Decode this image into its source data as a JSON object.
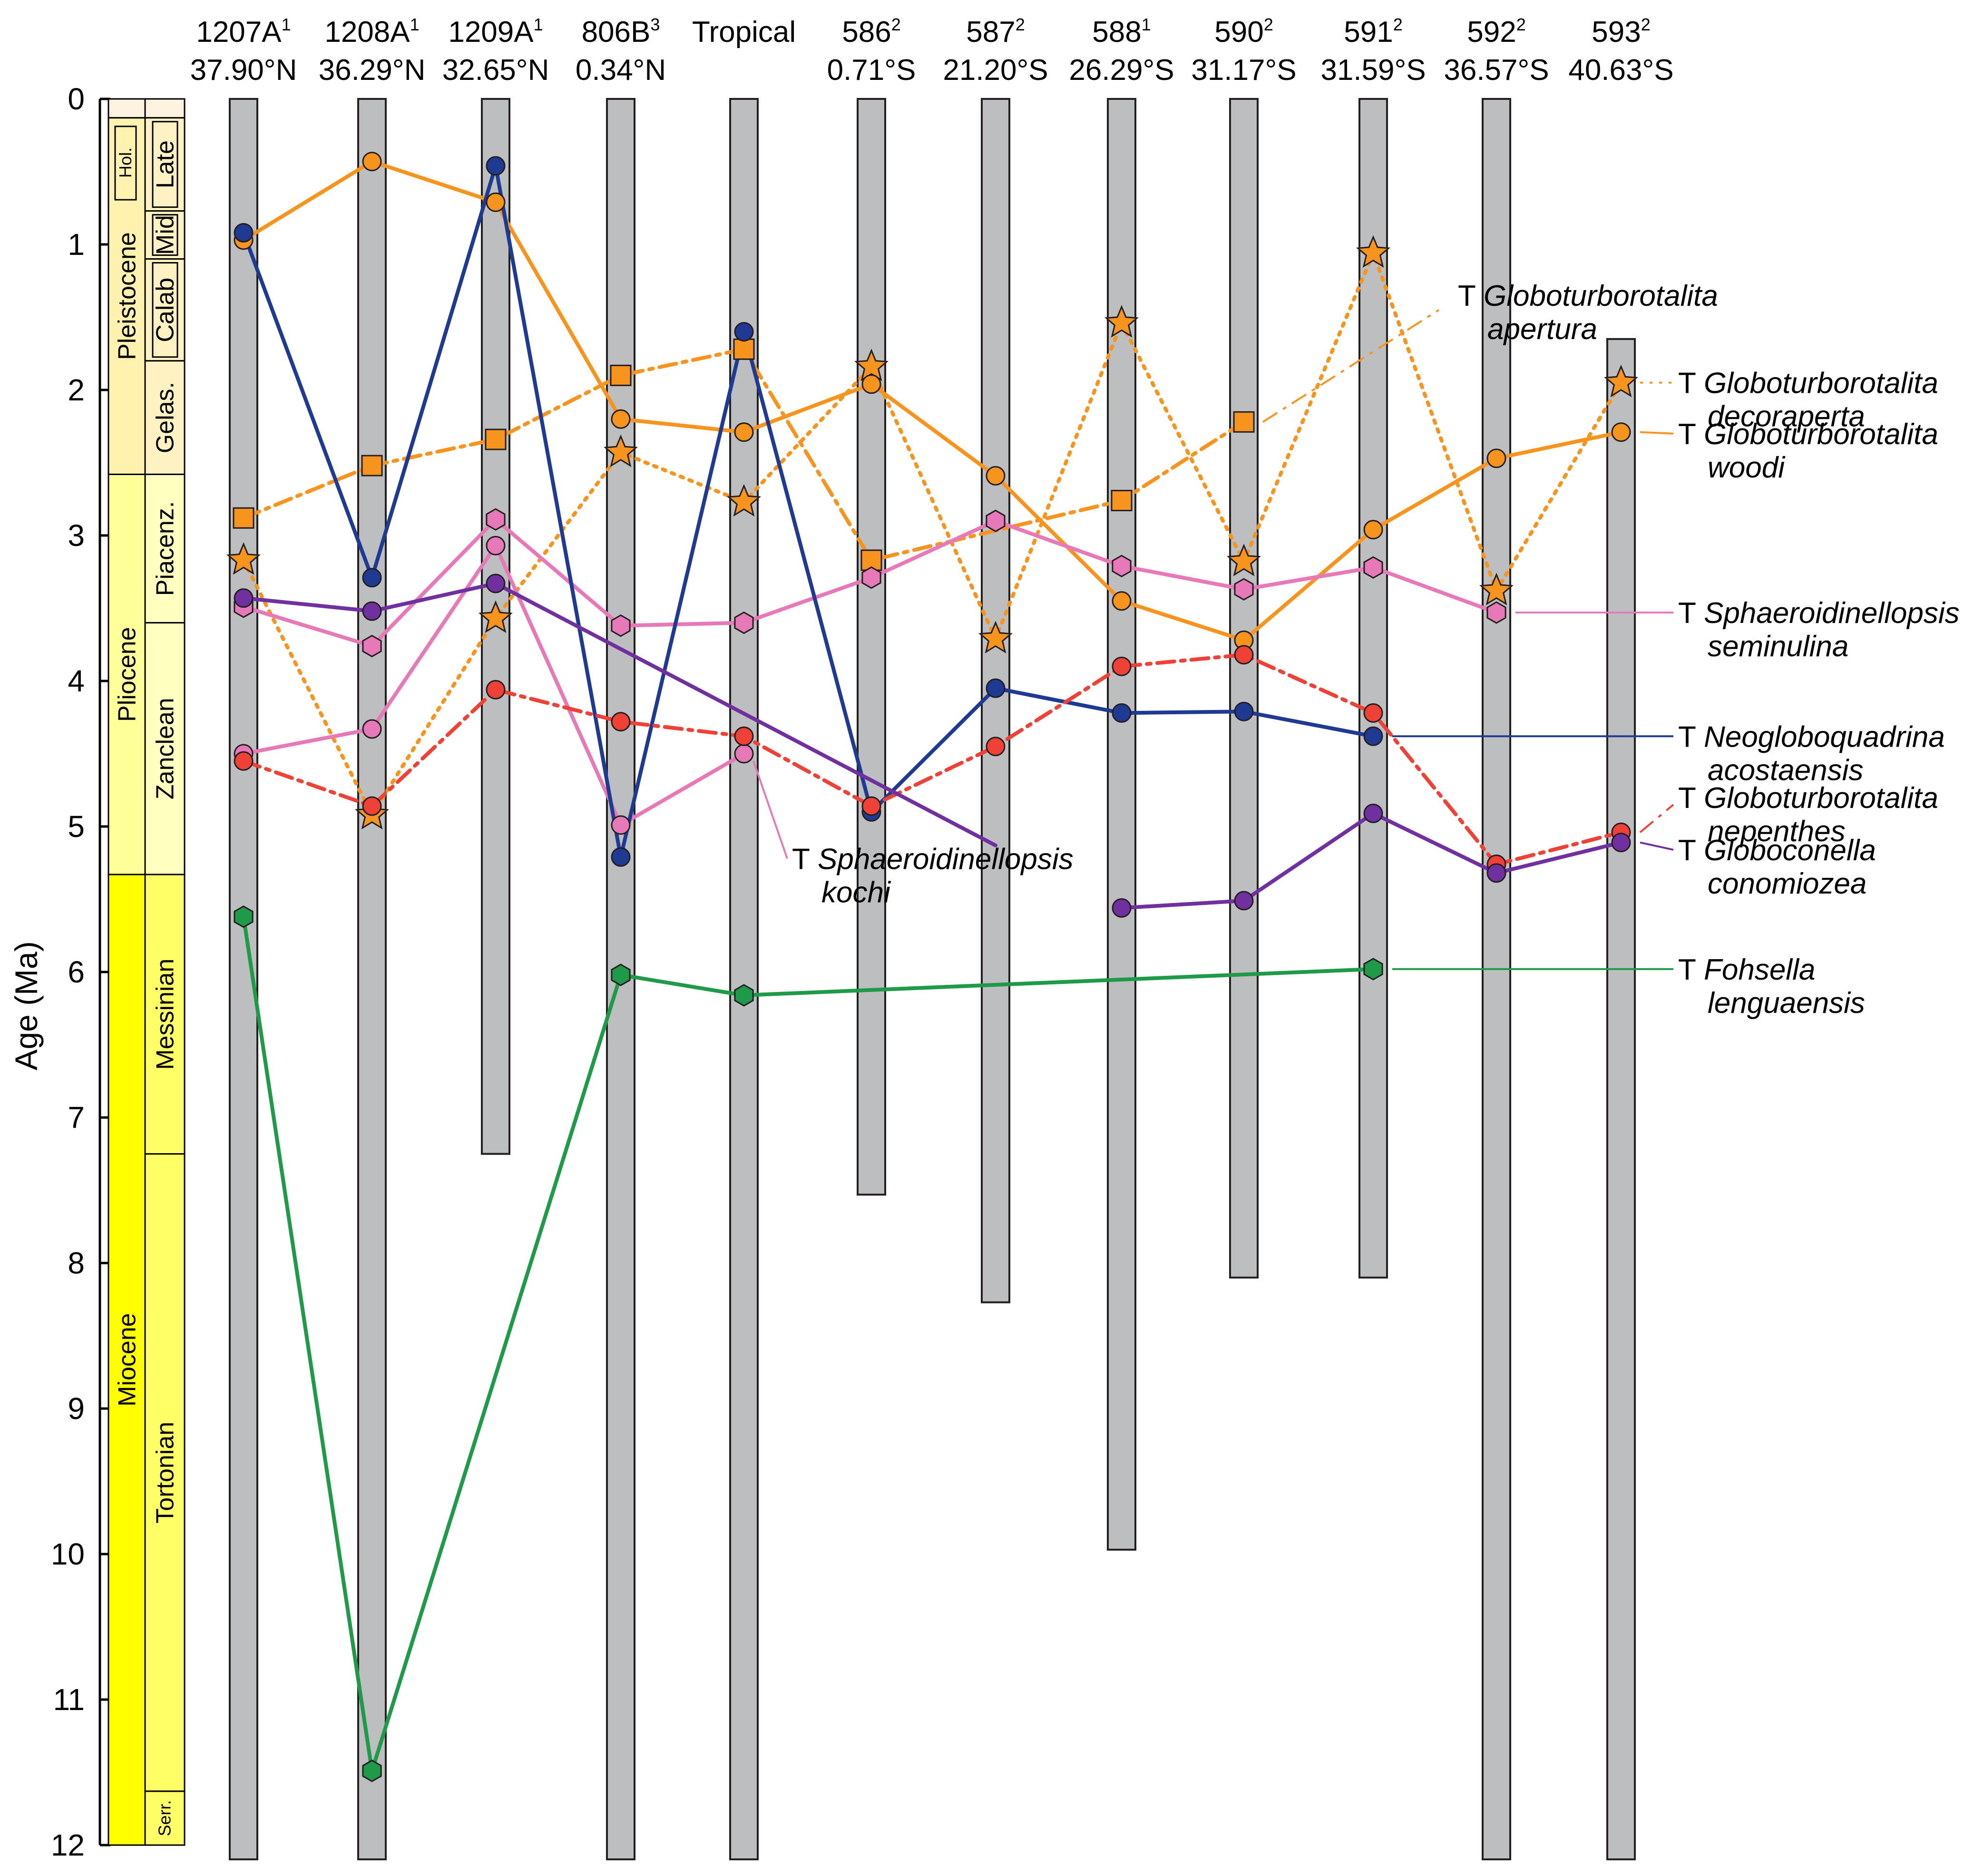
{
  "chart_data": {
    "type": "line",
    "title": "",
    "ylabel": "Age (Ma)",
    "ylim": [
      0,
      12
    ],
    "yticks": [
      "0",
      "1",
      "2",
      "3",
      "4",
      "5",
      "6",
      "7",
      "8",
      "9",
      "10",
      "11",
      "12"
    ],
    "grid": false,
    "timescale": {
      "epochs": [
        {
          "label": "Pleistocene",
          "from": 0.0117,
          "to": 2.58
        },
        {
          "label": "Pliocene",
          "from": 2.58,
          "to": 5.33
        },
        {
          "label": "Miocene",
          "from": 5.33,
          "to": 12
        }
      ],
      "holocene_label": "Hol.",
      "stages": [
        {
          "label": "Late",
          "from": 0.13,
          "to": 0.77
        },
        {
          "label": "Mid",
          "from": 0.77,
          "to": 1.1
        },
        {
          "label": "Calab",
          "from": 1.1,
          "to": 1.8
        },
        {
          "label": "Gelas.",
          "from": 1.8,
          "to": 2.58
        },
        {
          "label": "Piacenz.",
          "from": 2.58,
          "to": 3.6
        },
        {
          "label": "Zanclean",
          "from": 3.6,
          "to": 5.33
        },
        {
          "label": "Messinian",
          "from": 5.33,
          "to": 7.25
        },
        {
          "label": "Tortonian",
          "from": 7.25,
          "to": 11.63
        },
        {
          "label": "Serr.",
          "from": 11.63,
          "to": 12
        }
      ]
    },
    "sites": [
      {
        "name": "1207A",
        "sup": "1",
        "lat": "37.90°N",
        "top": 0.0,
        "base": 12
      },
      {
        "name": "1208A",
        "sup": "1",
        "lat": "36.29°N",
        "top": 0.0,
        "base": 12
      },
      {
        "name": "1209A",
        "sup": "1",
        "lat": "32.65°N",
        "top": 0.0,
        "base": 7.25
      },
      {
        "name": "806B",
        "sup": "3",
        "lat": "0.34°N",
        "top": 0.0,
        "base": 12
      },
      {
        "name": "Tropical",
        "sup": "",
        "lat": "",
        "top": 0.0,
        "base": 12
      },
      {
        "name": "586",
        "sup": "2",
        "lat": "0.71°S",
        "top": 0.0,
        "base": 7.53
      },
      {
        "name": "587",
        "sup": "2",
        "lat": "21.20°S",
        "top": 0.0,
        "base": 8.27
      },
      {
        "name": "588",
        "sup": "1",
        "lat": "26.29°S",
        "top": 0.0,
        "base": 9.97
      },
      {
        "name": "590",
        "sup": "2",
        "lat": "31.17°S",
        "top": 0.0,
        "base": 8.1
      },
      {
        "name": "591",
        "sup": "2",
        "lat": "31.59°S",
        "top": 0.0,
        "base": 8.1
      },
      {
        "name": "592",
        "sup": "2",
        "lat": "36.57°S",
        "top": 0.0,
        "base": 12
      },
      {
        "name": "593",
        "sup": "2",
        "lat": "40.63°S",
        "top": 1.65,
        "base": 12
      }
    ],
    "series": [
      {
        "name": "Globoturborotalita apertura",
        "label_prefix": "T",
        "label_line1": "Globoturborotalita",
        "label_line2": "apertura",
        "color": "#f7941d",
        "dash": "dashdot",
        "marker": "square",
        "label_age": 1.55,
        "points": [
          [
            0,
            2.88
          ],
          [
            1,
            2.52
          ],
          [
            2,
            2.34
          ],
          [
            3,
            1.9
          ],
          [
            4,
            1.72
          ],
          [
            5,
            3.17
          ],
          [
            7,
            2.76
          ],
          [
            8,
            2.22
          ]
        ]
      },
      {
        "name": "Globoturborotalita decoraperta",
        "label_prefix": "T",
        "label_line1": "Globoturborotalita",
        "label_line2": "decoraperta",
        "color": "#f7941d",
        "dash": "dotted",
        "marker": "star",
        "label_age": 1.95,
        "points": [
          [
            0,
            3.17
          ],
          [
            1,
            4.92
          ],
          [
            2,
            3.57
          ],
          [
            3,
            2.43
          ],
          [
            4,
            2.77
          ],
          [
            5,
            1.84
          ],
          [
            6,
            3.71
          ],
          [
            7,
            1.54
          ],
          [
            8,
            3.18
          ],
          [
            9,
            1.06
          ],
          [
            10,
            3.38
          ],
          [
            11,
            1.95
          ]
        ]
      },
      {
        "name": "Globoturborotalita woodi",
        "label_prefix": "T",
        "label_line1": "Globoturborotalita",
        "label_line2": "woodi",
        "color": "#f7941d",
        "dash": "solid",
        "marker": "circle",
        "label_age": 2.3,
        "points": [
          [
            0,
            0.97
          ],
          [
            1,
            0.43
          ],
          [
            2,
            0.71
          ],
          [
            3,
            2.2
          ],
          [
            4,
            2.29
          ],
          [
            5,
            1.96
          ],
          [
            6,
            2.59
          ],
          [
            7,
            3.45
          ],
          [
            8,
            3.72
          ],
          [
            9,
            2.96
          ],
          [
            10,
            2.47
          ],
          [
            11,
            2.29
          ]
        ]
      },
      {
        "name": "Sphaeroidinellopsis seminulina",
        "label_prefix": "T",
        "label_line1": "Sphaeroidinellopsis",
        "label_line2": "seminulina",
        "color": "#e879b9",
        "dash": "solid",
        "marker": "hexagon",
        "label_age": 3.53,
        "points": [
          [
            0,
            3.49
          ],
          [
            1,
            3.76
          ],
          [
            2,
            2.89
          ],
          [
            3,
            3.62
          ],
          [
            4,
            3.6
          ],
          [
            5,
            3.29
          ],
          [
            6,
            2.9
          ],
          [
            7,
            3.21
          ],
          [
            8,
            3.37
          ],
          [
            9,
            3.22
          ],
          [
            10,
            3.53
          ]
        ]
      },
      {
        "name": "Sphaeroidinellopsis kochi",
        "label_prefix": "T",
        "label_line1": "Sphaeroidinellopsis",
        "label_line2": "kochi",
        "color": "#e879b9",
        "dash": "solid",
        "marker": "circle",
        "label_age": 5.25,
        "points": [
          [
            0,
            4.5
          ],
          [
            1,
            4.33
          ],
          [
            2,
            3.07
          ],
          [
            3,
            4.99
          ],
          [
            4,
            4.5
          ]
        ]
      },
      {
        "name": "Neogloboquadrina acostaensis",
        "label_prefix": "T",
        "label_line1": "Neogloboquadrina",
        "label_line2": "acostaensis",
        "color": "#1f3a93",
        "dash": "solid",
        "marker": "circle",
        "label_age": 4.38,
        "points": [
          [
            0,
            0.92
          ],
          [
            1,
            3.29
          ],
          [
            2,
            0.46
          ],
          [
            3,
            5.21
          ],
          [
            4,
            1.6
          ],
          [
            5,
            4.9
          ],
          [
            6,
            4.05
          ],
          [
            7,
            4.22
          ],
          [
            8,
            4.21
          ],
          [
            9,
            4.38
          ]
        ]
      },
      {
        "name": "Globoturborotalita nepenthes",
        "label_prefix": "T",
        "label_line1": "Globoturborotalita",
        "label_line2": "nepenthes",
        "color": "#ef4136",
        "dash": "dashdot",
        "marker": "circle",
        "label_age": 4.92,
        "points": [
          [
            0,
            4.55
          ],
          [
            1,
            4.86
          ],
          [
            2,
            4.06
          ],
          [
            3,
            4.28
          ],
          [
            4,
            4.38
          ],
          [
            5,
            4.86
          ],
          [
            6,
            4.45
          ],
          [
            7,
            3.9
          ],
          [
            8,
            3.82
          ],
          [
            9,
            4.22
          ],
          [
            10,
            5.26
          ],
          [
            11,
            5.04
          ]
        ]
      },
      {
        "name": "Globoconella conomiozea",
        "label_prefix": "T",
        "label_line1": "Globoconella",
        "label_line2": "conomiozea",
        "color": "#7030a0",
        "dash": "solid",
        "marker": "circle",
        "label_age": 5.16,
        "segments": [
          [
            [
              0,
              3.43
            ],
            [
              1,
              3.52
            ],
            [
              2,
              3.33
            ],
            [
              6,
              5.13
            ]
          ],
          [
            [
              7,
              5.56
            ],
            [
              8,
              5.51
            ],
            [
              9,
              4.91
            ],
            [
              10,
              5.32
            ],
            [
              11,
              5.11
            ]
          ]
        ]
      },
      {
        "name": "Fohsella lenguaensis",
        "label_prefix": "T",
        "label_line1": "Fohsella",
        "label_line2": "lenguaensis",
        "color": "#1f9a48",
        "dash": "solid",
        "marker": "hexagon",
        "label_age": 5.98,
        "points": [
          [
            0,
            5.62
          ],
          [
            1,
            11.49
          ],
          [
            3,
            6.02
          ],
          [
            4,
            6.16
          ],
          [
            9,
            5.98
          ]
        ]
      }
    ],
    "markers": [
      {
        "series": 0,
        "points": [
          [
            0,
            2.88
          ],
          [
            1,
            2.52
          ],
          [
            2,
            2.34
          ],
          [
            3,
            1.9
          ],
          [
            4,
            1.72
          ],
          [
            5,
            3.17
          ],
          [
            7,
            2.76
          ],
          [
            8,
            2.22
          ]
        ]
      },
      {
        "series": 1,
        "points": [
          [
            0,
            3.17
          ],
          [
            1,
            4.92
          ],
          [
            2,
            3.57
          ],
          [
            3,
            2.43
          ],
          [
            4,
            2.77
          ],
          [
            5,
            1.84
          ],
          [
            6,
            3.71
          ],
          [
            7,
            1.54
          ],
          [
            8,
            3.18
          ],
          [
            9,
            1.06
          ],
          [
            10,
            3.38
          ],
          [
            11,
            1.95
          ]
        ]
      },
      {
        "series": 2,
        "points": [
          [
            0,
            0.97
          ],
          [
            1,
            0.43
          ],
          [
            2,
            0.71
          ],
          [
            3,
            2.2
          ],
          [
            4,
            2.29
          ],
          [
            5,
            1.96
          ],
          [
            6,
            2.59
          ],
          [
            7,
            3.45
          ],
          [
            8,
            3.72
          ],
          [
            9,
            2.96
          ],
          [
            10,
            2.47
          ],
          [
            11,
            2.29
          ]
        ]
      },
      {
        "series": 3,
        "points": [
          [
            0,
            3.49
          ],
          [
            1,
            3.76
          ],
          [
            2,
            2.89
          ],
          [
            3,
            3.62
          ],
          [
            4,
            3.6
          ],
          [
            5,
            3.29
          ],
          [
            6,
            2.9
          ],
          [
            7,
            3.21
          ],
          [
            8,
            3.37
          ],
          [
            9,
            3.22
          ],
          [
            10,
            3.53
          ]
        ]
      },
      {
        "series": 4,
        "points": [
          [
            0,
            4.5
          ],
          [
            1,
            4.33
          ],
          [
            2,
            3.07
          ],
          [
            3,
            4.99
          ],
          [
            4,
            4.5
          ]
        ]
      },
      {
        "series": 5,
        "points": [
          [
            0,
            0.92
          ],
          [
            1,
            3.29
          ],
          [
            2,
            0.46
          ],
          [
            3,
            5.21
          ],
          [
            4,
            1.6
          ],
          [
            5,
            4.9
          ],
          [
            6,
            4.05
          ],
          [
            7,
            4.22
          ],
          [
            8,
            4.21
          ],
          [
            9,
            4.38
          ]
        ]
      },
      {
        "series": 6,
        "points": [
          [
            0,
            4.55
          ],
          [
            1,
            4.86
          ],
          [
            2,
            4.06
          ],
          [
            3,
            4.28
          ],
          [
            4,
            4.38
          ],
          [
            5,
            4.86
          ],
          [
            6,
            4.45
          ],
          [
            7,
            3.9
          ],
          [
            8,
            3.82
          ],
          [
            9,
            4.22
          ],
          [
            10,
            5.26
          ],
          [
            11,
            5.04
          ]
        ]
      },
      {
        "series": 7,
        "points": [
          [
            0,
            3.43
          ],
          [
            1,
            3.52
          ],
          [
            2,
            3.33
          ],
          [
            7,
            5.56
          ],
          [
            8,
            5.51
          ],
          [
            9,
            4.91
          ],
          [
            10,
            5.32
          ],
          [
            11,
            5.11
          ]
        ]
      },
      {
        "series": 8,
        "points": [
          [
            0,
            5.62
          ],
          [
            1,
            11.49
          ],
          [
            3,
            6.02
          ],
          [
            4,
            6.16
          ],
          [
            9,
            5.98
          ]
        ]
      }
    ],
    "colors": {
      "column_fill": "#bcbec0",
      "column_stroke": "#231f20",
      "holocene": "#fef2e0",
      "pleistocene": "#fff2ae",
      "pliocene": "#ffff99",
      "miocene": "#ffff00",
      "stage_pleist": "#fff2c2",
      "stage_plio": "#ffffbf",
      "stage_mio": "#ffff66",
      "orange": "#f7941d",
      "pink": "#e879b9",
      "blue": "#1f3a93",
      "red": "#ef4136",
      "purple": "#7030a0",
      "green": "#1f9a48"
    }
  }
}
